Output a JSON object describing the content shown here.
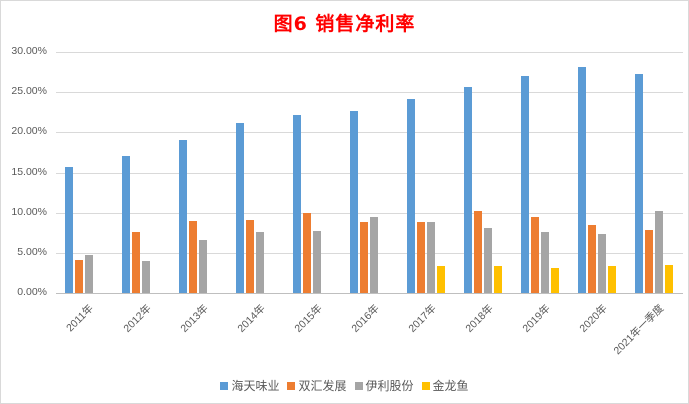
{
  "chart_data": {
    "type": "bar",
    "title": "图6 销售净利率",
    "xlabel": "",
    "ylabel": "",
    "ylim": [
      0,
      30
    ],
    "yticks": [
      "0.00%",
      "5.00%",
      "10.00%",
      "15.00%",
      "20.00%",
      "25.00%",
      "30.00%"
    ],
    "grid": true,
    "legend_position": "bottom",
    "categories": [
      "2011年",
      "2012年",
      "2013年",
      "2014年",
      "2015年",
      "2016年",
      "2017年",
      "2018年",
      "2019年",
      "2020年",
      "2021年一季度"
    ],
    "series": [
      {
        "name": "海天味业",
        "color": "#5b9bd5",
        "values": [
          15.7,
          17.0,
          19.1,
          21.2,
          22.2,
          22.7,
          24.2,
          25.6,
          27.0,
          28.1,
          27.2
        ]
      },
      {
        "name": "双汇发展",
        "color": "#ed7d31",
        "values": [
          4.1,
          7.6,
          9.0,
          9.1,
          9.9,
          8.8,
          8.9,
          10.2,
          9.4,
          8.5,
          7.9
        ]
      },
      {
        "name": "伊利股份",
        "color": "#a5a5a5",
        "values": [
          4.7,
          4.0,
          6.6,
          7.6,
          7.7,
          9.4,
          8.9,
          8.1,
          7.6,
          7.3,
          10.2
        ]
      },
      {
        "name": "金龙鱼",
        "color": "#ffc000",
        "values": [
          null,
          null,
          null,
          null,
          null,
          null,
          3.4,
          3.3,
          3.1,
          3.3,
          3.5
        ]
      }
    ]
  }
}
